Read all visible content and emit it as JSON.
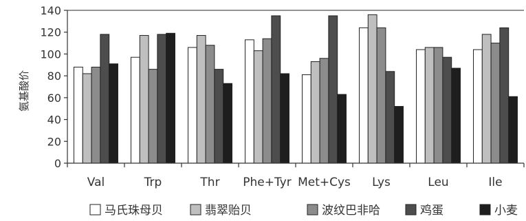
{
  "chart_data": {
    "type": "bar",
    "title": "",
    "xlabel": "",
    "ylabel": "氨基酸价",
    "ylim": [
      0,
      140
    ],
    "yticks": [
      0,
      20,
      40,
      60,
      80,
      100,
      120,
      140
    ],
    "categories": [
      "Val",
      "Trp",
      "Thr",
      "Phe+Tyr",
      "Met+Cys",
      "Lys",
      "Leu",
      "Ile"
    ],
    "series": [
      {
        "name": "马氏珠母贝",
        "color": "#ffffff",
        "values": [
          88,
          97,
          106,
          113,
          81,
          124,
          104,
          104
        ]
      },
      {
        "name": "翡翠贻贝",
        "color": "#bfbfbf",
        "values": [
          82,
          117,
          117,
          103,
          93,
          136,
          106,
          118
        ]
      },
      {
        "name": "波纹巴非哈",
        "color": "#8c8c8c",
        "values": [
          88,
          86,
          108,
          114,
          96,
          124,
          106,
          110
        ]
      },
      {
        "name": "鸡蛋",
        "color": "#4d4d4d",
        "values": [
          118,
          118,
          86,
          135,
          135,
          84,
          97,
          124
        ]
      },
      {
        "name": "小麦",
        "color": "#1e1e1e",
        "values": [
          91,
          119,
          73,
          82,
          63,
          52,
          87,
          61
        ]
      }
    ],
    "legend_position": "bottom",
    "grid": false
  }
}
